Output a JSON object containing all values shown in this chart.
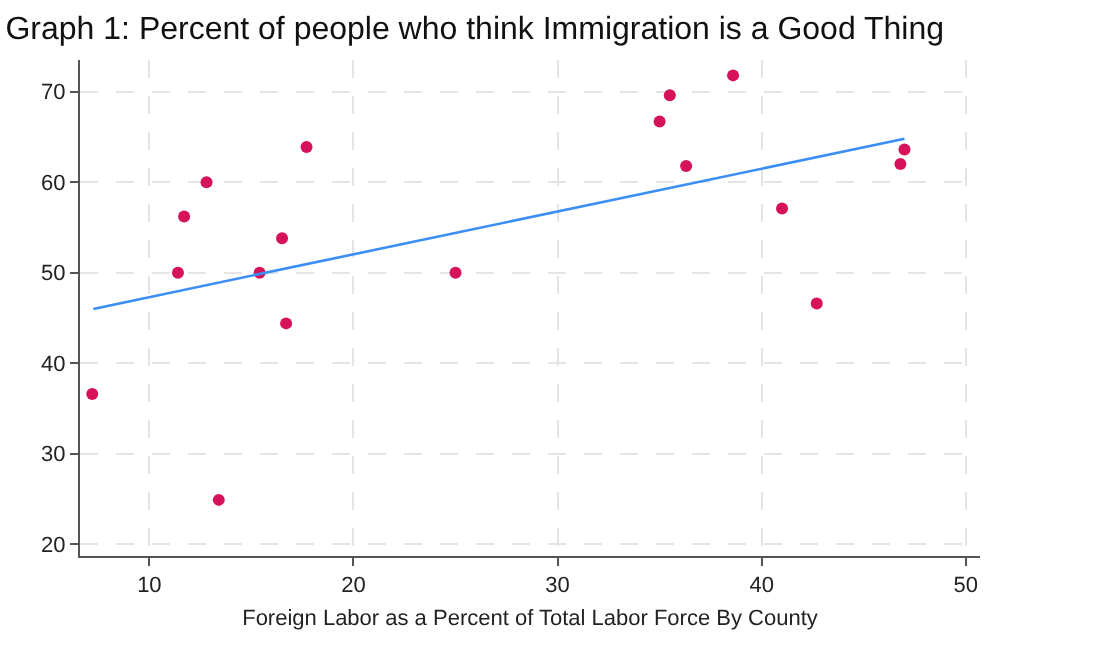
{
  "chart_data": {
    "type": "scatter",
    "title": "Graph 1: Percent of people who think Immigration is a Good Thing",
    "xlabel": "Foreign Labor as a Percent of Total Labor Force By County",
    "xlim": [
      6.6,
      50.7
    ],
    "xticks": [
      10,
      20,
      30,
      40,
      50
    ],
    "ylim": [
      18.7,
      73.5
    ],
    "yticks": [
      20,
      30,
      40,
      50,
      60,
      70
    ],
    "grid": true,
    "series": [
      {
        "marker": "circle",
        "color": "#d6135a",
        "x": [
          7.2,
          11.4,
          11.7,
          12.8,
          13.4,
          15.4,
          16.5,
          16.7,
          17.7,
          25,
          35.0,
          35.5,
          38.6,
          36.3,
          41.0,
          42.7,
          46.8,
          47.0
        ],
        "values": [
          36.6,
          50,
          56.2,
          60,
          24.9,
          50,
          53.8,
          44.4,
          63.9,
          50,
          66.7,
          69.6,
          71.8,
          61.8,
          57.1,
          46.6,
          62,
          63.6
        ]
      },
      {
        "type": "line",
        "color": "#3a8ef6",
        "x": [
          7.25,
          47.0
        ],
        "values": [
          46.0,
          64.8
        ]
      }
    ]
  }
}
